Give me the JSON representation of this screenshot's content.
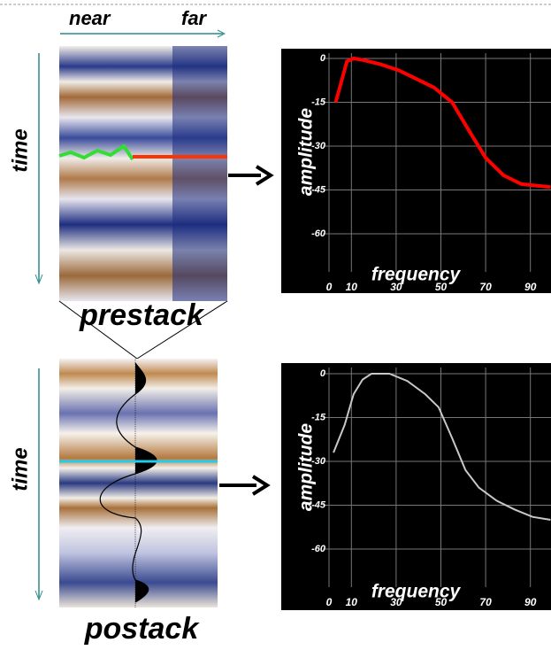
{
  "labels": {
    "near": "near",
    "far": "far",
    "time_top": "time",
    "prestack": "prestack",
    "time_bottom": "time",
    "postack": "postack"
  },
  "chart_data": [
    {
      "type": "line",
      "xlabel": "frequency",
      "ylabel": "amplitude",
      "xlim": [
        0,
        100
      ],
      "ylim": [
        -70,
        0
      ],
      "xticks": [
        0,
        10,
        30,
        50,
        70,
        90
      ],
      "yticks": [
        0,
        -15,
        -30,
        -45,
        -60
      ],
      "grid": true,
      "x": [
        3,
        8,
        11,
        15,
        23,
        31,
        39,
        47,
        55,
        62,
        70,
        78,
        86,
        99
      ],
      "series": [
        {
          "color": "#ff0000",
          "values": [
            -15,
            -1,
            0,
            -0.5,
            -2,
            -4,
            -7,
            -10,
            -15,
            -24,
            -34,
            -40,
            -43,
            -44
          ]
        }
      ]
    },
    {
      "type": "line",
      "xlabel": "frequency",
      "ylabel": "amplitude",
      "xlim": [
        0,
        100
      ],
      "ylim": [
        -70,
        0
      ],
      "xticks": [
        0,
        10,
        30,
        50,
        70,
        90
      ],
      "yticks": [
        0,
        -15,
        -30,
        -45,
        -60
      ],
      "grid": true,
      "x": [
        2,
        7,
        11,
        15,
        19,
        27,
        35,
        43,
        49,
        55,
        61,
        67,
        75,
        83,
        91,
        99
      ],
      "series": [
        {
          "color": "#c8c8c8",
          "values": [
            -27,
            -17.5,
            -7,
            -2,
            0,
            0,
            -2.5,
            -7,
            -11.5,
            -22,
            -33,
            -39,
            -43.5,
            -46.5,
            -49,
            -50
          ]
        }
      ]
    }
  ]
}
